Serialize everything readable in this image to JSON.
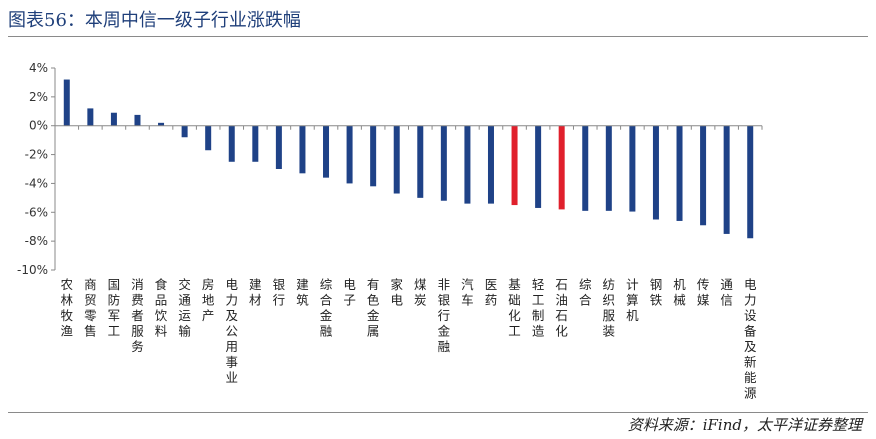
{
  "header": {
    "title": "图表56：本周中信一级子行业涨跌幅"
  },
  "footer": {
    "source": "资料来源：iFind，太平洋证券整理"
  },
  "colors": {
    "bar": "#1f4287",
    "highlight": "#e0202c",
    "title": "#1f3f7a"
  },
  "chart_data": {
    "type": "bar",
    "title": "",
    "xlabel": "",
    "ylabel": "",
    "ylim": [
      -10,
      4
    ],
    "yticks": [
      4,
      2,
      0,
      -2,
      -4,
      -6,
      -8,
      -10
    ],
    "ytick_labels": [
      "4%",
      "2%",
      "0%",
      "-2%",
      "-4%",
      "-6%",
      "-8%",
      "-10%"
    ],
    "grid": false,
    "categories": [
      "农林牧渔",
      "商贸零售",
      "国防军工",
      "消费者服务",
      "食品饮料",
      "交通运输",
      "房地产",
      "电力及公用事业",
      "建材",
      "银行",
      "建筑",
      "综合金融",
      "电子",
      "有色金属",
      "家电",
      "煤炭",
      "非银行金融",
      "汽车",
      "医药",
      "基础化工",
      "轻工制造",
      "石油石化",
      "综合",
      "纺织服装",
      "计算机",
      "钢铁",
      "机械",
      "传媒",
      "通信",
      "电力设备及新能源"
    ],
    "values": [
      3.2,
      1.2,
      0.9,
      0.75,
      0.2,
      -0.8,
      -1.7,
      -2.5,
      -2.5,
      -3.0,
      -3.3,
      -3.6,
      -4.0,
      -4.2,
      -4.7,
      -5.0,
      -5.2,
      -5.4,
      -5.4,
      -5.5,
      -5.7,
      -5.8,
      -5.9,
      -5.9,
      -5.95,
      -6.5,
      -6.6,
      -6.9,
      -7.5,
      -7.8
    ],
    "highlighted": [
      "基础化工",
      "石油石化"
    ]
  }
}
